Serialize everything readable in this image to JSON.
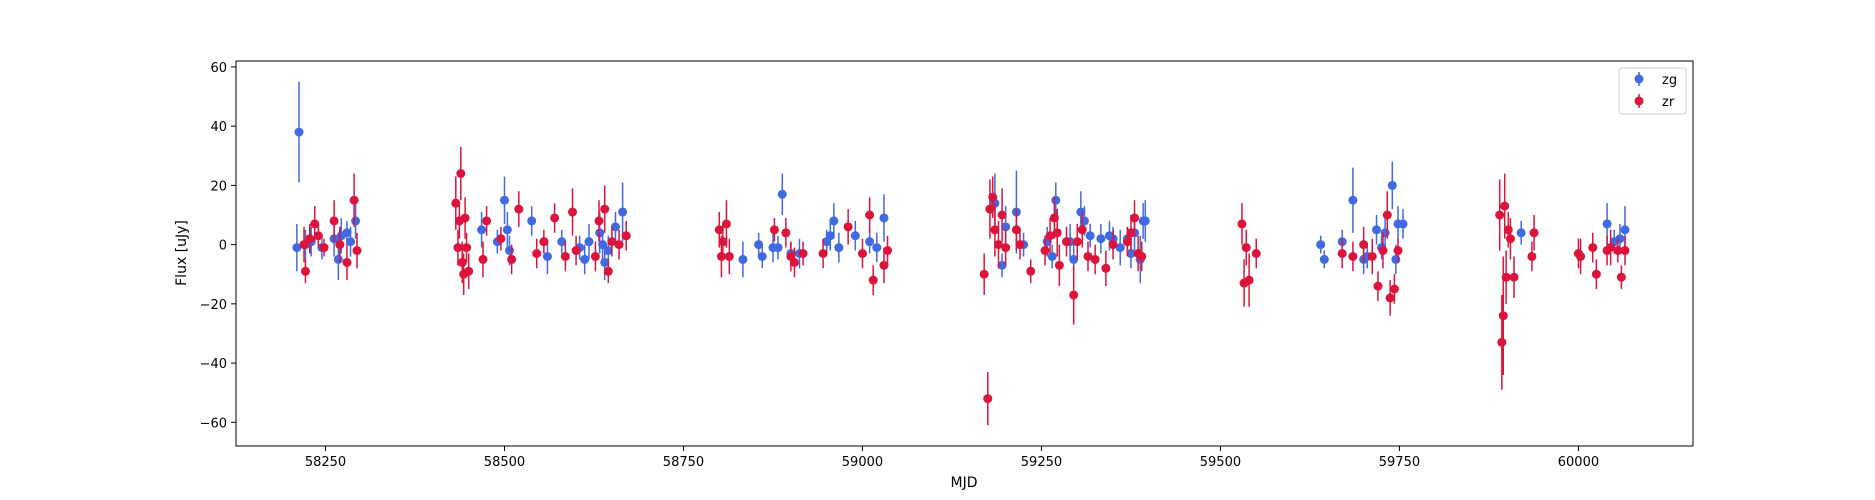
{
  "chart_data": {
    "type": "scatter",
    "title": "",
    "xlabel": "MJD",
    "ylabel": "Flux [uJy]",
    "xlim": [
      58125,
      60160
    ],
    "ylim": [
      -68,
      62
    ],
    "xticks": [
      58250,
      58500,
      58750,
      59000,
      59250,
      59500,
      59750,
      60000
    ],
    "xtick_labels": [
      "58250",
      "58500",
      "58750",
      "59000",
      "59250",
      "59500",
      "59750",
      "60000"
    ],
    "yticks": [
      -60,
      -40,
      -20,
      0,
      20,
      40,
      60
    ],
    "ytick_labels": [
      "−60",
      "−40",
      "−20",
      "0",
      "20",
      "40",
      "60"
    ],
    "grid": false,
    "legend_position": "upper right",
    "series": [
      {
        "name": "zg",
        "color": "#4169e1",
        "marker": "circle",
        "error_bars": true,
        "points": [
          [
            58210,
            -1,
            8
          ],
          [
            58213,
            38,
            17
          ],
          [
            58222,
            0,
            5
          ],
          [
            58230,
            1,
            5
          ],
          [
            58245,
            -1,
            4
          ],
          [
            58262,
            2,
            6
          ],
          [
            58268,
            -5,
            7
          ],
          [
            58272,
            3,
            6
          ],
          [
            58280,
            4,
            4
          ],
          [
            58285,
            1,
            5
          ],
          [
            58292,
            8,
            6
          ],
          [
            58468,
            5,
            6
          ],
          [
            58490,
            1,
            4
          ],
          [
            58500,
            15,
            8
          ],
          [
            58504,
            5,
            6
          ],
          [
            58507,
            -2,
            5
          ],
          [
            58538,
            8,
            5
          ],
          [
            58560,
            -4,
            6
          ],
          [
            58580,
            1,
            4
          ],
          [
            58605,
            -1,
            4
          ],
          [
            58612,
            -5,
            5
          ],
          [
            58618,
            1,
            6
          ],
          [
            58633,
            4,
            7
          ],
          [
            58637,
            0,
            5
          ],
          [
            58640,
            -6,
            6
          ],
          [
            58645,
            -2,
            5
          ],
          [
            58655,
            6,
            5
          ],
          [
            58665,
            11,
            10
          ],
          [
            58833,
            -5,
            6
          ],
          [
            58855,
            0,
            4
          ],
          [
            58860,
            -4,
            4
          ],
          [
            58875,
            -1,
            5
          ],
          [
            58882,
            -1,
            4
          ],
          [
            58888,
            17,
            7
          ],
          [
            58900,
            -3,
            4
          ],
          [
            58912,
            -3,
            5
          ],
          [
            58950,
            1,
            4
          ],
          [
            58955,
            3,
            5
          ],
          [
            58960,
            8,
            6
          ],
          [
            58967,
            -1,
            5
          ],
          [
            58990,
            3,
            5
          ],
          [
            59010,
            1,
            4
          ],
          [
            59020,
            -1,
            5
          ],
          [
            59030,
            9,
            8
          ],
          [
            59185,
            14,
            10
          ],
          [
            59195,
            -7,
            4
          ],
          [
            59200,
            6,
            7
          ],
          [
            59215,
            11,
            14
          ],
          [
            59225,
            0,
            4
          ],
          [
            59258,
            1,
            5
          ],
          [
            59265,
            -4,
            4
          ],
          [
            59270,
            15,
            6
          ],
          [
            59290,
            1,
            6
          ],
          [
            59295,
            -5,
            5
          ],
          [
            59305,
            11,
            7
          ],
          [
            59310,
            8,
            5
          ],
          [
            59318,
            3,
            4
          ],
          [
            59333,
            2,
            5
          ],
          [
            59345,
            3,
            5
          ],
          [
            59350,
            2,
            4
          ],
          [
            59360,
            -1,
            6
          ],
          [
            59370,
            2,
            4
          ],
          [
            59375,
            -3,
            5
          ],
          [
            59380,
            4,
            6
          ],
          [
            59388,
            -5,
            8
          ],
          [
            59392,
            8,
            6
          ],
          [
            59395,
            8,
            7
          ],
          [
            59640,
            0,
            3
          ],
          [
            59645,
            -5,
            3
          ],
          [
            59670,
            1,
            4
          ],
          [
            59685,
            15,
            11
          ],
          [
            59700,
            -5,
            5
          ],
          [
            59705,
            -4,
            4
          ],
          [
            59718,
            5,
            5
          ],
          [
            59725,
            -1,
            4
          ],
          [
            59730,
            4,
            6
          ],
          [
            59740,
            20,
            8
          ],
          [
            59745,
            -5,
            5
          ],
          [
            59748,
            7,
            6
          ],
          [
            59755,
            7,
            5
          ],
          [
            59920,
            4,
            4
          ],
          [
            60040,
            7,
            7
          ],
          [
            60050,
            1,
            4
          ],
          [
            60058,
            2,
            5
          ],
          [
            60065,
            5,
            8
          ]
        ]
      },
      {
        "name": "zr",
        "color": "#dc143c",
        "marker": "circle",
        "error_bars": true,
        "points": [
          [
            58220,
            0,
            6
          ],
          [
            58222,
            -9,
            4
          ],
          [
            58228,
            2,
            5
          ],
          [
            58235,
            7,
            6
          ],
          [
            58240,
            3,
            4
          ],
          [
            58248,
            -1,
            3
          ],
          [
            58262,
            8,
            7
          ],
          [
            58270,
            0,
            6
          ],
          [
            58280,
            -6,
            6
          ],
          [
            58290,
            15,
            9
          ],
          [
            58294,
            -2,
            6
          ],
          [
            58432,
            14,
            9
          ],
          [
            58435,
            -1,
            6
          ],
          [
            58437,
            8,
            6
          ],
          [
            58439,
            24,
            9
          ],
          [
            58441,
            -6,
            7
          ],
          [
            58443,
            -10,
            7
          ],
          [
            58445,
            9,
            7
          ],
          [
            58447,
            -1,
            5
          ],
          [
            58450,
            -9,
            6
          ],
          [
            58470,
            -5,
            6
          ],
          [
            58475,
            8,
            5
          ],
          [
            58495,
            2,
            4
          ],
          [
            58510,
            -5,
            5
          ],
          [
            58520,
            12,
            6
          ],
          [
            58545,
            -3,
            5
          ],
          [
            58555,
            1,
            4
          ],
          [
            58570,
            9,
            5
          ],
          [
            58585,
            -4,
            5
          ],
          [
            58595,
            11,
            8
          ],
          [
            58600,
            -2,
            5
          ],
          [
            58627,
            -4,
            5
          ],
          [
            58632,
            8,
            7
          ],
          [
            58640,
            12,
            8
          ],
          [
            58645,
            -9,
            4
          ],
          [
            58650,
            1,
            5
          ],
          [
            58660,
            0,
            5
          ],
          [
            58670,
            3,
            5
          ],
          [
            58800,
            5,
            6
          ],
          [
            58803,
            -4,
            7
          ],
          [
            58805,
            1,
            6
          ],
          [
            58810,
            7,
            8
          ],
          [
            58814,
            -4,
            6
          ],
          [
            58877,
            5,
            4
          ],
          [
            58893,
            4,
            5
          ],
          [
            58900,
            -4,
            5
          ],
          [
            58905,
            -6,
            5
          ],
          [
            58917,
            -3,
            4
          ],
          [
            58945,
            -3,
            5
          ],
          [
            58980,
            6,
            6
          ],
          [
            59000,
            -3,
            5
          ],
          [
            59010,
            10,
            6
          ],
          [
            59015,
            -12,
            5
          ],
          [
            59030,
            -7,
            6
          ],
          [
            59035,
            -2,
            5
          ],
          [
            59170,
            -10,
            7
          ],
          [
            59175,
            -52,
            9
          ],
          [
            59178,
            12,
            10
          ],
          [
            59182,
            16,
            7
          ],
          [
            59185,
            5,
            9
          ],
          [
            59190,
            0,
            8
          ],
          [
            59195,
            10,
            9
          ],
          [
            59200,
            -1,
            6
          ],
          [
            59215,
            5,
            7
          ],
          [
            59220,
            0,
            5
          ],
          [
            59235,
            -9,
            4
          ],
          [
            59255,
            -2,
            5
          ],
          [
            59262,
            3,
            6
          ],
          [
            59268,
            9,
            7
          ],
          [
            59272,
            4,
            8
          ],
          [
            59275,
            -7,
            7
          ],
          [
            59285,
            1,
            5
          ],
          [
            59295,
            -17,
            10
          ],
          [
            59300,
            1,
            6
          ],
          [
            59307,
            5,
            6
          ],
          [
            59315,
            -4,
            5
          ],
          [
            59325,
            -5,
            5
          ],
          [
            59340,
            -8,
            6
          ],
          [
            59350,
            0,
            5
          ],
          [
            59370,
            1,
            5
          ],
          [
            59375,
            4,
            6
          ],
          [
            59380,
            9,
            6
          ],
          [
            59385,
            -3,
            6
          ],
          [
            59390,
            -4,
            5
          ],
          [
            59530,
            7,
            7
          ],
          [
            59533,
            -13,
            8
          ],
          [
            59536,
            -1,
            6
          ],
          [
            59540,
            -12,
            9
          ],
          [
            59550,
            -3,
            5
          ],
          [
            59670,
            -3,
            5
          ],
          [
            59685,
            -4,
            5
          ],
          [
            59700,
            0,
            6
          ],
          [
            59712,
            -4,
            6
          ],
          [
            59720,
            -14,
            5
          ],
          [
            59727,
            -2,
            6
          ],
          [
            59733,
            10,
            8
          ],
          [
            59737,
            -18,
            6
          ],
          [
            59743,
            -15,
            5
          ],
          [
            59748,
            -2,
            4
          ],
          [
            59890,
            10,
            12
          ],
          [
            59893,
            -33,
            16
          ],
          [
            59895,
            -24,
            20
          ],
          [
            59897,
            13,
            11
          ],
          [
            59899,
            -11,
            9
          ],
          [
            59902,
            5,
            6
          ],
          [
            59905,
            2,
            7
          ],
          [
            59910,
            -11,
            7
          ],
          [
            59935,
            -4,
            5
          ],
          [
            59938,
            4,
            6
          ],
          [
            60000,
            -3,
            5
          ],
          [
            60003,
            -4,
            6
          ],
          [
            60020,
            -1,
            5
          ],
          [
            60025,
            -10,
            5
          ],
          [
            60040,
            -2,
            5
          ],
          [
            60045,
            -1,
            6
          ],
          [
            60055,
            -2,
            4
          ],
          [
            60060,
            -11,
            4
          ],
          [
            60065,
            -2,
            5
          ]
        ]
      }
    ]
  }
}
